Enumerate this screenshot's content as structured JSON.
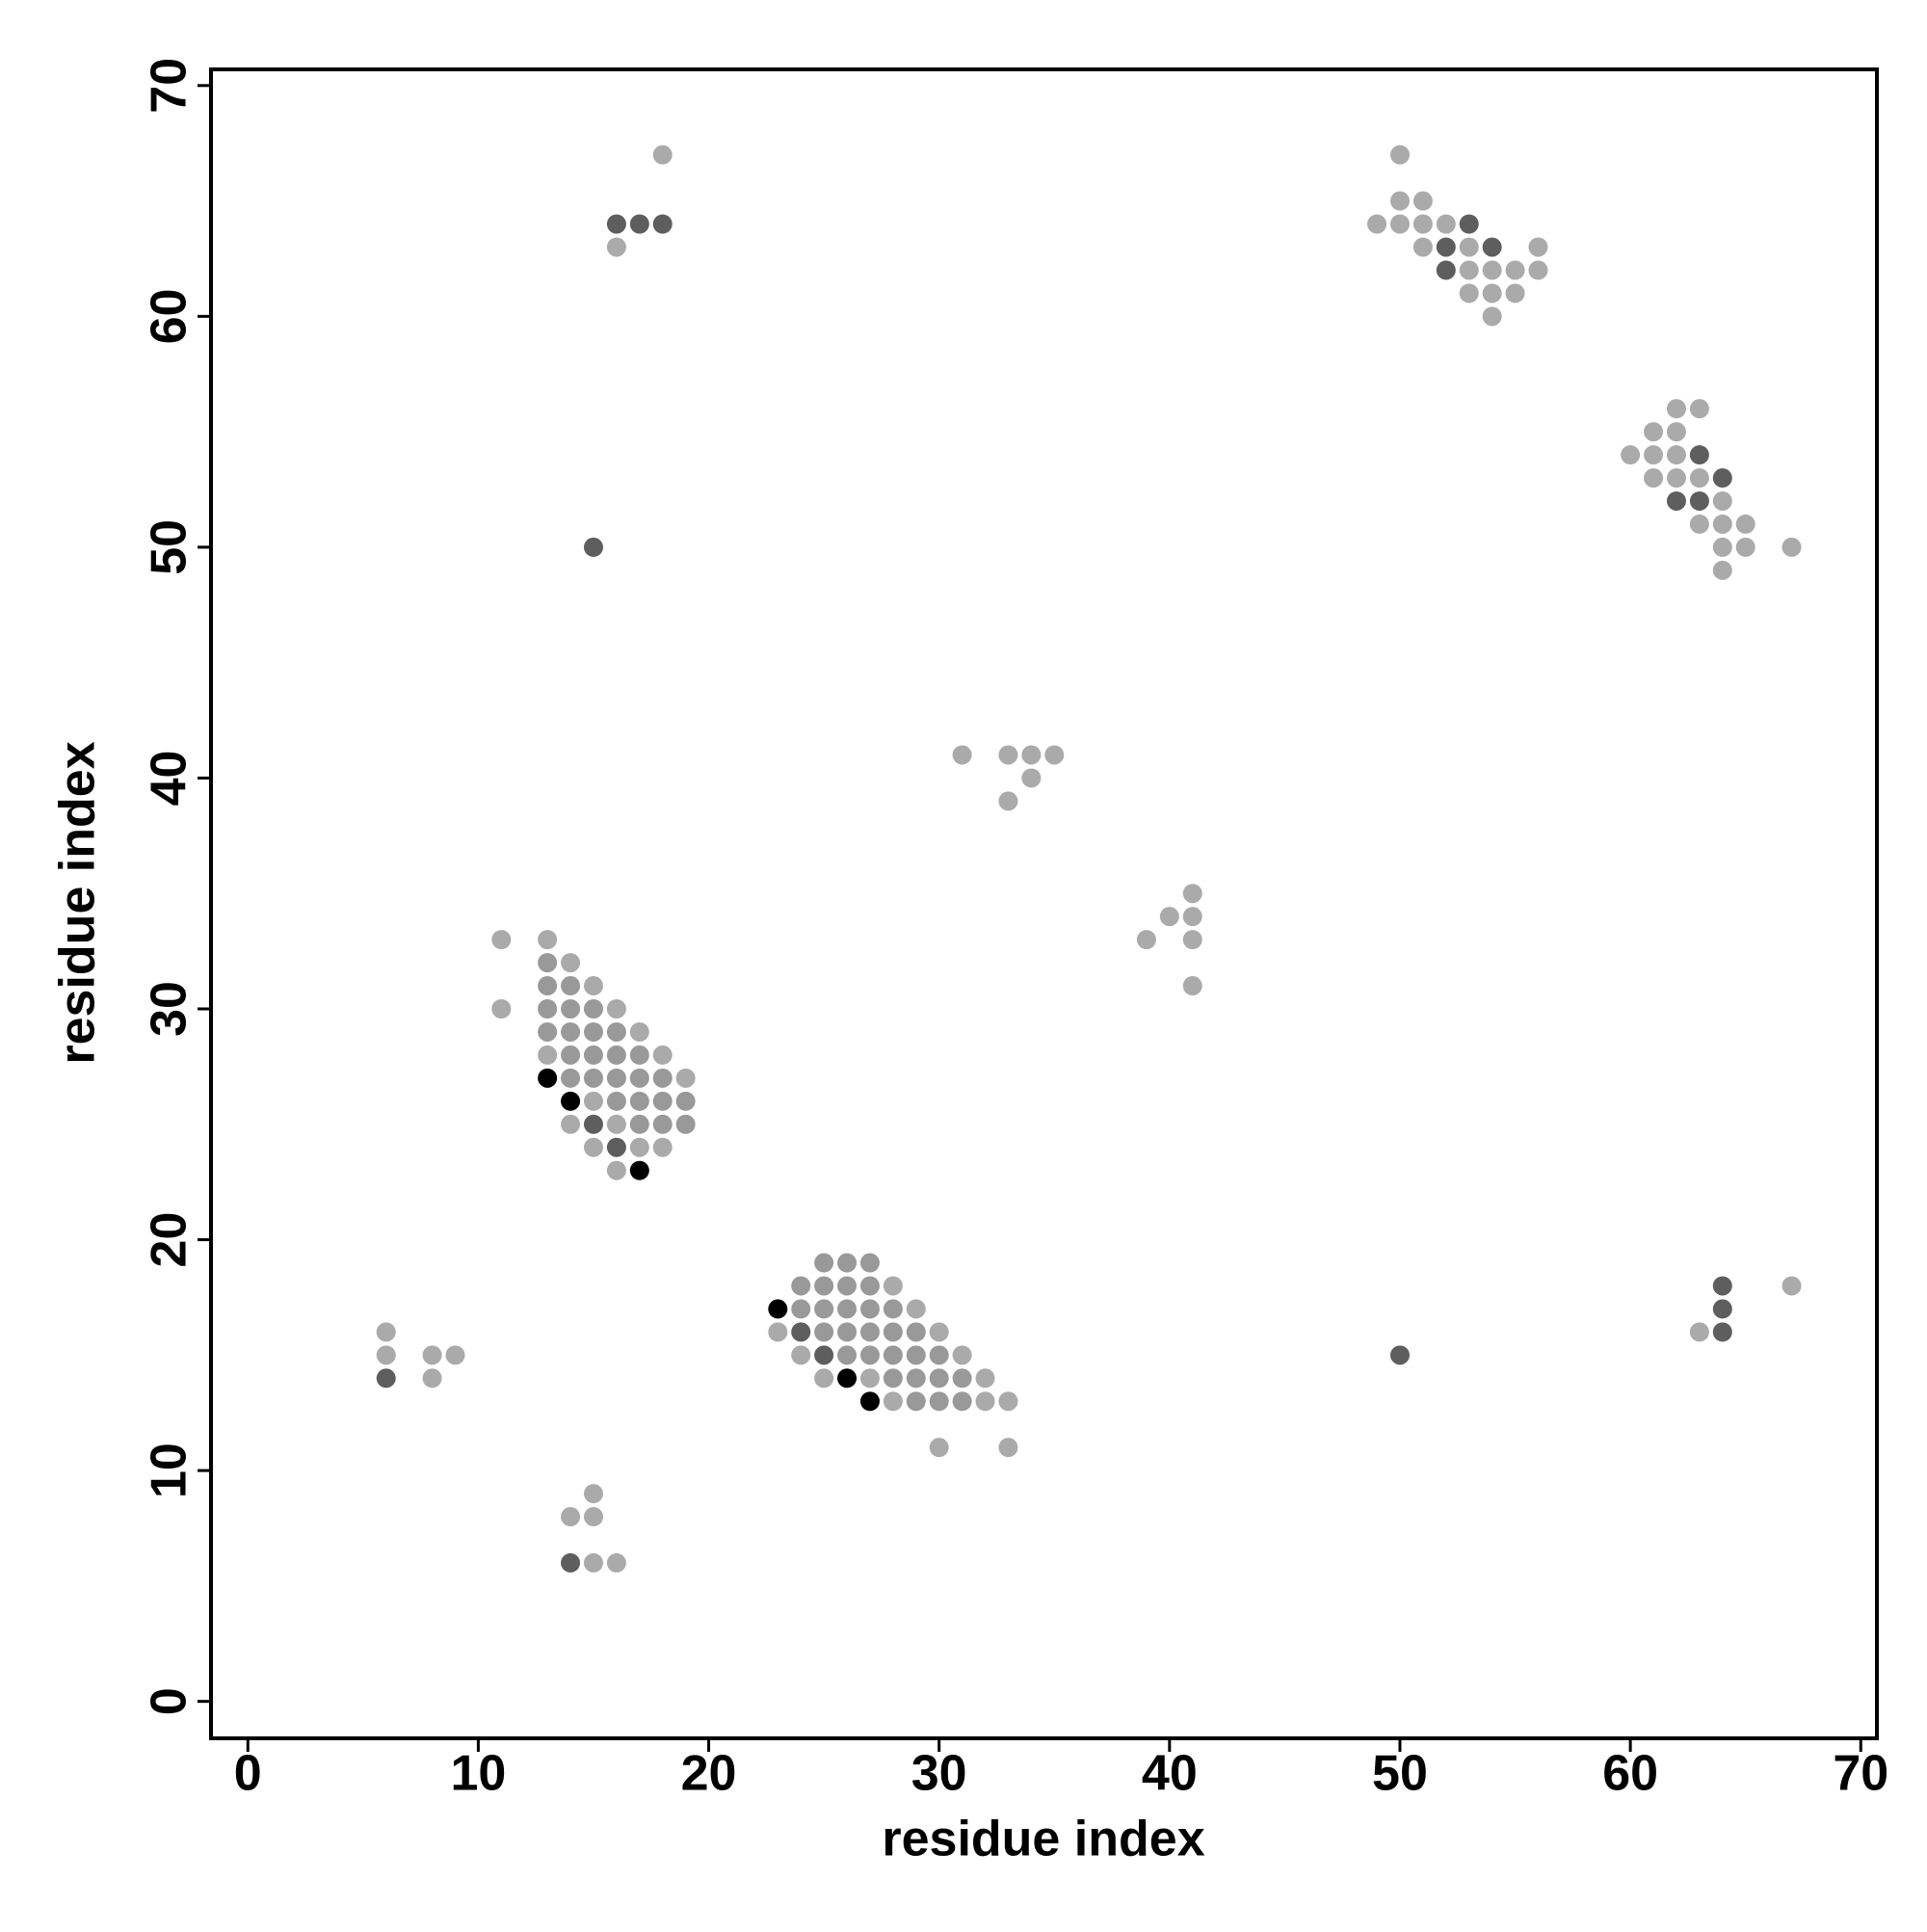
{
  "chart_data": {
    "type": "scatter",
    "xlabel": "residue index",
    "ylabel": "residue index",
    "xlim": [
      -1.6,
      70.7
    ],
    "ylim": [
      -1.6,
      70.7
    ],
    "xticks": [
      0,
      10,
      20,
      30,
      40,
      50,
      60,
      70
    ],
    "yticks": [
      0,
      10,
      20,
      30,
      40,
      50,
      60,
      70
    ],
    "series": [
      {
        "color": "#aaaaaa",
        "x": [
          18,
          16,
          50,
          50,
          51,
          49,
          50,
          51,
          52,
          51,
          53,
          56,
          53,
          54,
          55,
          56,
          53,
          54,
          55,
          54,
          62,
          63,
          61,
          62,
          60,
          61,
          62,
          61,
          62,
          63,
          64,
          63,
          64,
          65,
          64,
          65,
          67,
          64,
          31,
          33,
          34,
          35,
          34,
          33,
          41,
          40,
          41,
          39,
          41,
          41,
          11,
          13,
          14,
          15,
          11,
          16,
          17,
          13,
          18,
          19,
          15,
          14,
          16,
          15,
          17,
          18,
          16,
          28,
          29,
          23,
          30,
          24,
          31,
          25,
          27,
          32,
          28,
          32,
          33,
          30,
          33,
          6,
          6,
          8,
          9,
          8,
          15,
          14,
          15,
          15,
          16,
          63,
          67
        ],
        "y": [
          67,
          63,
          67,
          65,
          65,
          64,
          64,
          64,
          64,
          63,
          63,
          63,
          62,
          62,
          62,
          62,
          61,
          61,
          61,
          60,
          56,
          56,
          55,
          55,
          54,
          54,
          54,
          53,
          53,
          53,
          52,
          51,
          51,
          51,
          50,
          50,
          50,
          49,
          41,
          41,
          41,
          41,
          40,
          39,
          35,
          34,
          34,
          33,
          33,
          31,
          33,
          33,
          32,
          31,
          30,
          30,
          29,
          28,
          28,
          27,
          26,
          25,
          25,
          24,
          24,
          24,
          23,
          18,
          17,
          16,
          16,
          15,
          15,
          14,
          14,
          14,
          13,
          13,
          13,
          11,
          11,
          16,
          15,
          15,
          15,
          14,
          9,
          8,
          8,
          6,
          6,
          16,
          18
        ]
      },
      {
        "color": "#999999",
        "x": [
          13,
          13,
          14,
          13,
          14,
          15,
          13,
          14,
          15,
          16,
          14,
          15,
          16,
          17,
          14,
          15,
          16,
          17,
          18,
          16,
          17,
          18,
          19,
          17,
          18,
          19,
          25,
          26,
          27,
          24,
          25,
          26,
          27,
          24,
          25,
          26,
          27,
          28,
          25,
          26,
          27,
          28,
          29,
          26,
          27,
          28,
          29,
          30,
          28,
          29,
          30,
          31,
          29,
          30,
          31
        ],
        "y": [
          32,
          31,
          31,
          30,
          30,
          30,
          29,
          29,
          29,
          29,
          28,
          28,
          28,
          28,
          27,
          27,
          27,
          27,
          27,
          26,
          26,
          26,
          26,
          25,
          25,
          25,
          19,
          19,
          19,
          18,
          18,
          18,
          18,
          17,
          17,
          17,
          17,
          17,
          16,
          16,
          16,
          16,
          16,
          15,
          15,
          15,
          15,
          15,
          14,
          14,
          14,
          14,
          13,
          13,
          13
        ]
      },
      {
        "color": "#5e5e5e",
        "x": [
          16,
          17,
          18,
          15,
          53,
          52,
          54,
          52,
          63,
          64,
          62,
          63,
          15,
          16,
          24,
          25,
          6,
          14,
          50,
          64,
          64,
          64
        ],
        "y": [
          64,
          64,
          64,
          50,
          64,
          63,
          63,
          62,
          54,
          53,
          52,
          52,
          25,
          24,
          16,
          15,
          14,
          6,
          15,
          18,
          17,
          16
        ]
      },
      {
        "color": "#000000",
        "x": [
          13,
          14,
          17,
          23,
          26,
          27
        ],
        "y": [
          27,
          26,
          23,
          17,
          14,
          13
        ]
      }
    ]
  }
}
